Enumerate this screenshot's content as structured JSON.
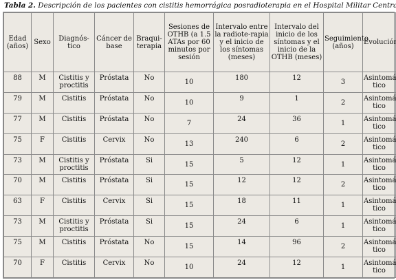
{
  "caption": {
    "label": "Tabla 2.",
    "text": "Descripción de los pacientes con cistitis hemorrágica posradioterapia en el Hospital Militar Central."
  },
  "headers": [
    "Edad (años)",
    "Sexo",
    "Diagnós-tico",
    "Cáncer de base",
    "Braqui-terapia",
    "Sesiones de OTHB (a 1.5 ATAs por 60 minutos por sesión",
    "Intervalo entre la radiote-rapia y el inicio de los síntomas (meses)",
    "Intervalo del inicio de los síntomas y el inicio de la OTHB (meses)",
    "Seguimiento (años)",
    "Evolución"
  ],
  "rows": [
    [
      "88",
      "M",
      "Cistitis y proctitis",
      "Próstata",
      "No",
      "10",
      "180",
      "12",
      "3",
      "Asintomá-tico"
    ],
    [
      "79",
      "M",
      "Cistitis",
      "Próstata",
      "No",
      "10",
      "9",
      "1",
      "2",
      "Asintomá-tico"
    ],
    [
      "77",
      "M",
      "Cistitis",
      "Próstata",
      "No",
      "7",
      "24",
      "36",
      "1",
      "Asintomá-tico"
    ],
    [
      "75",
      "F",
      "Cistitis",
      "Cervix",
      "No",
      "13",
      "240",
      "6",
      "2",
      "Asintomá-tico"
    ],
    [
      "73",
      "M",
      "Cistitis y proctitis",
      "Próstata",
      "Si",
      "15",
      "5",
      "12",
      "1",
      "Asintomá-tico"
    ],
    [
      "70",
      "M",
      "Cistitis",
      "Próstata",
      "Si",
      "15",
      "12",
      "12",
      "2",
      "Asintomá-tico"
    ],
    [
      "63",
      "F",
      "Cistitis",
      "Cervix",
      "Si",
      "15",
      "18",
      "11",
      "1",
      "Asintomá-tico"
    ],
    [
      "73",
      "M",
      "Cistitis y proctitis",
      "Próstata",
      "Si",
      "15",
      "24",
      "6",
      "1",
      "Asintomá-tico"
    ],
    [
      "75",
      "M",
      "Cistitis",
      "Próstata",
      "No",
      "15",
      "14",
      "96",
      "2",
      "Asintomá-tico"
    ],
    [
      "70",
      "F",
      "Cistitis",
      "Cervix",
      "No",
      "10",
      "24",
      "12",
      "1",
      "Asintomá-tico"
    ]
  ]
}
